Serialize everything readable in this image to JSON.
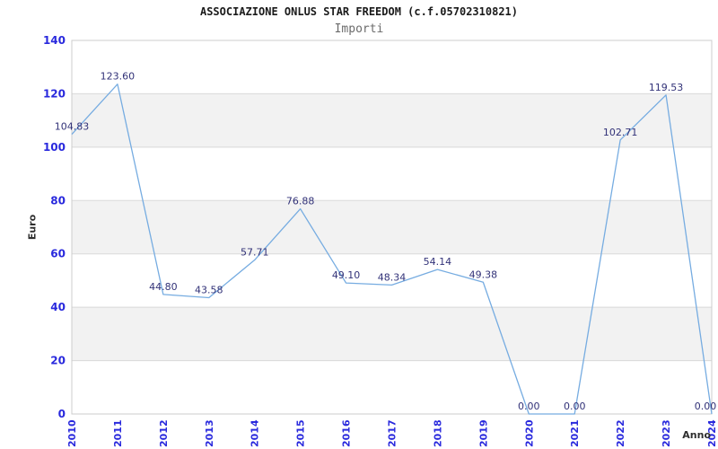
{
  "header": {
    "title": "ASSOCIAZIONE ONLUS STAR FREEDOM (c.f.05702310821)",
    "subtitle": "Importi"
  },
  "chart_data": {
    "type": "line",
    "title": "ASSOCIAZIONE ONLUS STAR FREEDOM (c.f.05702310821)",
    "subtitle": "Importi",
    "xlabel": "Anno",
    "ylabel": "Euro",
    "categories": [
      "2010",
      "2011",
      "2012",
      "2013",
      "2014",
      "2015",
      "2016",
      "2017",
      "2018",
      "2019",
      "2020",
      "2021",
      "2022",
      "2023",
      "2024"
    ],
    "values": [
      104.83,
      123.6,
      44.8,
      43.58,
      57.71,
      76.88,
      49.1,
      48.34,
      54.14,
      49.38,
      0.0,
      0.0,
      102.71,
      119.53,
      0.0
    ],
    "point_labels": [
      "104.83",
      "123.60",
      "44.80",
      "43.58",
      "57.71",
      "76.88",
      "49.10",
      "48.34",
      "54.14",
      "49.38",
      "0.00",
      "0.00",
      "102.71",
      "119.53",
      "0.00"
    ],
    "ylim": [
      0,
      140
    ],
    "ytick_step": 20,
    "yticks": [
      0,
      20,
      40,
      60,
      80,
      100,
      120,
      140
    ],
    "grid": "alternating-horizontal-bands",
    "legend": "none",
    "colors": {
      "line": "#76ace1",
      "tick_label": "#2929dd",
      "point_label": "#323278",
      "band_fill": "#f2f2f2",
      "gridline": "#d9d9d9",
      "plot_border": "#cccccc",
      "title": "#1a1a1a",
      "subtitle": "#6b6b6b",
      "axis_title": "#2e2e2e",
      "background": "#ffffff"
    }
  }
}
